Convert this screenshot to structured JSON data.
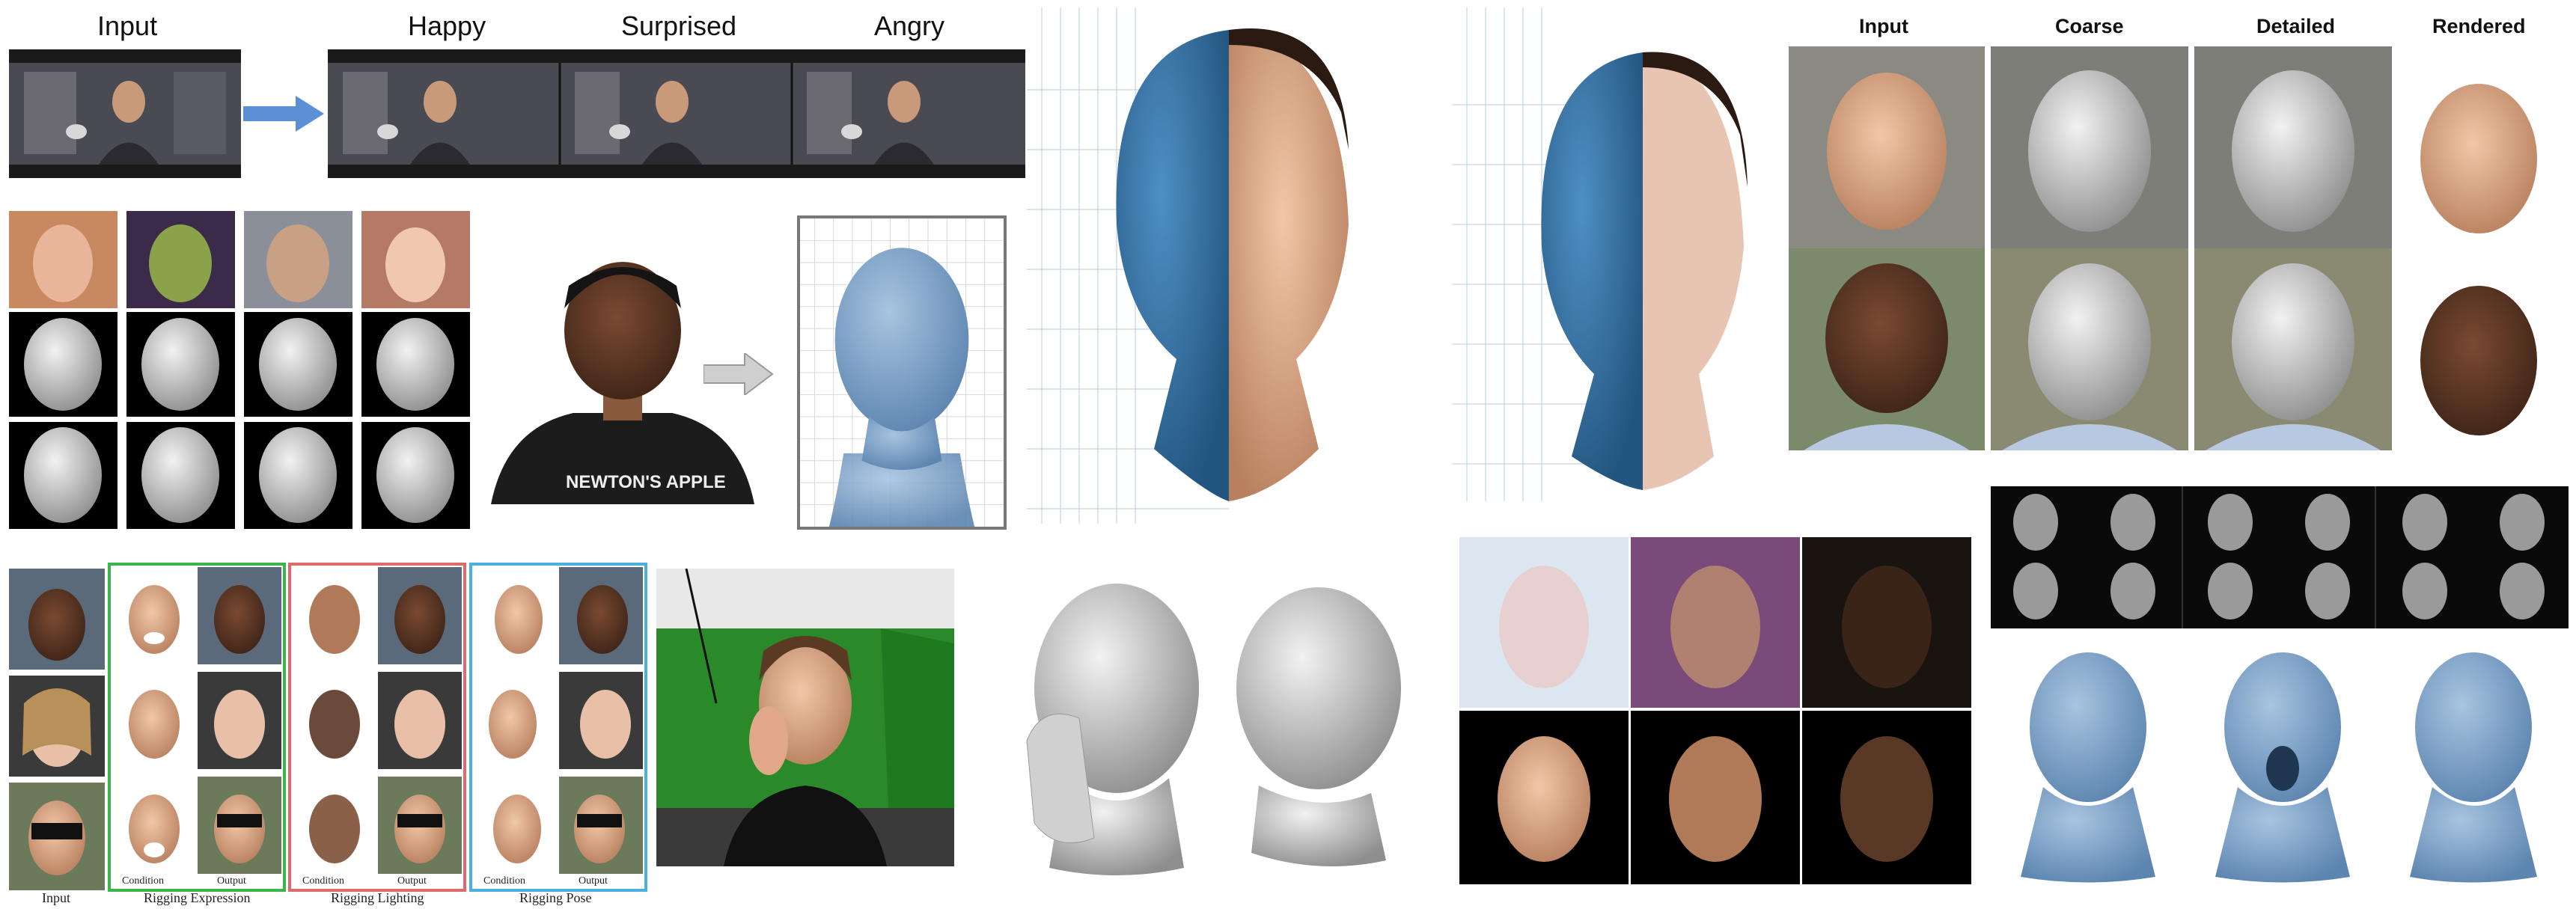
{
  "panel_expression_video": {
    "input_label": "Input",
    "outputs": [
      "Happy",
      "Surprised",
      "Angry"
    ]
  },
  "panel_coarse_detailed": {
    "columns": [
      "Input",
      "Coarse",
      "Detailed",
      "Rendered"
    ]
  },
  "panel_rigging": {
    "input_label": "Input",
    "groups": [
      {
        "title": "Rigging Expression",
        "condition": "Condition",
        "output": "Output",
        "color": "#3bb44a"
      },
      {
        "title": "Rigging Lighting",
        "condition": "Condition",
        "output": "Output",
        "color": "#e06a6a"
      },
      {
        "title": "Rigging Pose",
        "condition": "Condition",
        "output": "Output",
        "color": "#4ab0e0"
      }
    ]
  },
  "colors": {
    "arrow": "#5b8fd6",
    "gray_arrow": "#cfcfcf",
    "mesh_blue": "#3c77a8",
    "mesh_light_blue": "#7ea3c8",
    "mesh_gray": "#c9c9c9"
  }
}
